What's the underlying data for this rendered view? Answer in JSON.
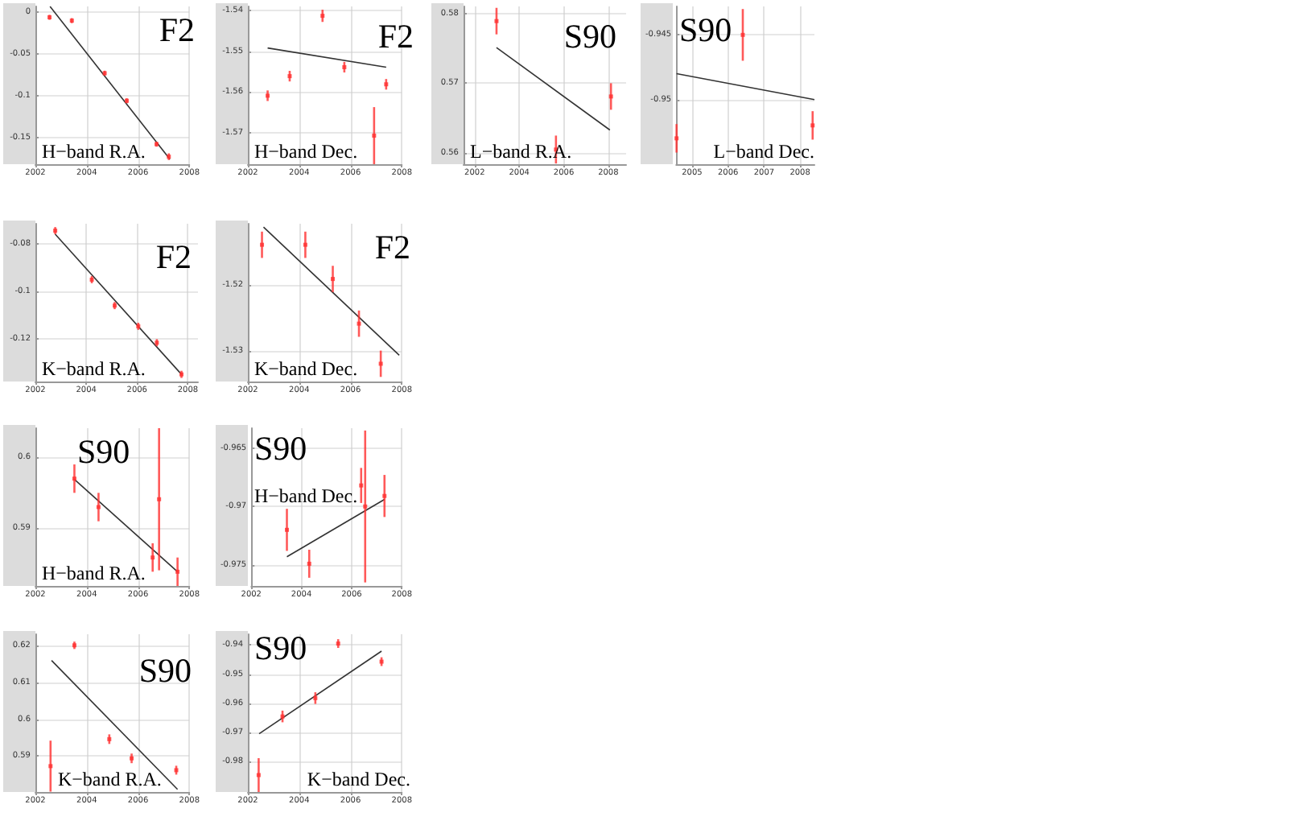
{
  "chart_data": [
    {
      "type": "scatter",
      "title": "F2",
      "subtitle": "H−band R.A.",
      "marker": "square",
      "grid": true,
      "xlim": [
        2002,
        2008
      ],
      "xticks": [
        2002,
        2004,
        2006,
        2008
      ],
      "ylim": [
        -0.182,
        0.007
      ],
      "yticks": [
        0,
        -0.05,
        -0.1,
        -0.15
      ],
      "series": [
        {
          "type": "scatter",
          "color": "#ff3030",
          "x": [
            2002.55,
            2003.42,
            2004.7,
            2005.56,
            2006.72,
            2007.2
          ],
          "values": [
            -0.006,
            -0.01,
            -0.073,
            -0.106,
            -0.158,
            -0.173
          ],
          "errors": [
            0.003,
            0.003,
            0.003,
            0.003,
            0.003,
            0.004
          ]
        },
        {
          "type": "line",
          "marker": "none",
          "color": "#333333",
          "x": [
            2002.57,
            2007.24
          ],
          "values": [
            0.007,
            -0.176
          ]
        }
      ]
    },
    {
      "type": "scatter",
      "title": "F2",
      "subtitle": "H−band Dec.",
      "marker": "square",
      "grid": true,
      "xlim": [
        2002,
        2008
      ],
      "xticks": [
        2002,
        2004,
        2006,
        2008
      ],
      "ylim": [
        -1.5777,
        -1.539
      ],
      "yticks": [
        -1.54,
        -1.55,
        -1.56,
        -1.57
      ],
      "series": [
        {
          "type": "scatter",
          "color": "#ff3030",
          "x": [
            2002.77,
            2003.63,
            2004.91,
            2005.76,
            2006.92,
            2007.39
          ],
          "values": [
            -1.5609,
            -1.5561,
            -1.5413,
            -1.5539,
            -1.5707,
            -1.5581
          ],
          "errors": [
            0.0013,
            0.0013,
            0.0015,
            0.0013,
            0.007,
            0.0013
          ]
        },
        {
          "type": "line",
          "marker": "none",
          "color": "#333333",
          "x": [
            2002.77,
            2007.39
          ],
          "values": [
            -1.5492,
            -1.5539
          ]
        }
      ]
    },
    {
      "type": "scatter",
      "title": "S90",
      "subtitle": "L−band R.A.",
      "marker": "square",
      "grid": true,
      "xlim": [
        2001.5,
        2008.8
      ],
      "xticks": [
        2002,
        2004,
        2006,
        2008
      ],
      "ylim": [
        0.5584,
        0.581
      ],
      "yticks": [
        0.58,
        0.57,
        0.56
      ],
      "series": [
        {
          "type": "scatter",
          "color": "#ff3030",
          "x": [
            2002.98,
            2005.65,
            2008.12
          ],
          "values": [
            0.5789,
            0.5605,
            0.5681
          ],
          "errors": [
            0.0019,
            0.002,
            0.0019
          ]
        },
        {
          "type": "line",
          "marker": "none",
          "color": "#333333",
          "x": [
            2002.98,
            2008.07
          ],
          "values": [
            0.5751,
            0.5633
          ]
        }
      ]
    },
    {
      "type": "scatter",
      "title": "S90",
      "subtitle": "L−band Dec.",
      "marker": "square",
      "grid": true,
      "xlim": [
        2004.56,
        2008.4
      ],
      "xticks": [
        2005,
        2006,
        2007,
        2008
      ],
      "ylim": [
        -0.955,
        -0.9428
      ],
      "yticks": [
        -0.945,
        -0.95
      ],
      "series": [
        {
          "type": "scatter",
          "color": "#ff3030",
          "x": [
            2004.57,
            2006.41,
            2008.35
          ],
          "values": [
            -0.953,
            -0.945,
            -0.952
          ],
          "errors": [
            0.0011,
            0.002,
            0.0011
          ]
        },
        {
          "type": "line",
          "marker": "none",
          "color": "#333333",
          "x": [
            2004.57,
            2008.4
          ],
          "values": [
            -0.948,
            -0.95
          ]
        }
      ]
    },
    {
      "type": "scatter",
      "title": "F2",
      "subtitle": "K−band R.A.",
      "marker": "square",
      "grid": true,
      "xlim": [
        2002,
        2008.4
      ],
      "xticks": [
        2002,
        2004,
        2006,
        2008
      ],
      "ylim": [
        -0.138,
        -0.0717
      ],
      "yticks": [
        -0.08,
        -0.1,
        -0.12
      ],
      "series": [
        {
          "type": "scatter",
          "color": "#ff3030",
          "x": [
            2002.78,
            2004.22,
            2005.12,
            2006.05,
            2006.78,
            2007.75
          ],
          "values": [
            -0.0746,
            -0.0952,
            -0.1061,
            -0.1148,
            -0.1217,
            -0.135
          ],
          "errors": [
            0.0015,
            0.0015,
            0.0015,
            0.0015,
            0.0015,
            0.0015
          ]
        },
        {
          "type": "line",
          "marker": "none",
          "color": "#333333",
          "x": [
            2002.78,
            2007.75
          ],
          "values": [
            -0.0761,
            -0.135
          ]
        }
      ]
    },
    {
      "type": "scatter",
      "title": "F2",
      "subtitle": "K−band Dec.",
      "marker": "square",
      "grid": true,
      "xlim": [
        2002,
        2008
      ],
      "xticks": [
        2002,
        2004,
        2006,
        2008
      ],
      "ylim": [
        -1.5347,
        -1.5107
      ],
      "yticks": [
        -1.52,
        -1.53
      ],
      "series": [
        {
          "type": "scatter",
          "color": "#ff3030",
          "x": [
            2002.55,
            2004.24,
            2005.31,
            2006.33,
            2007.18
          ],
          "values": [
            -1.5139,
            -1.5139,
            -1.5191,
            -1.5259,
            -1.532
          ],
          "errors": [
            0.002,
            0.002,
            0.002,
            0.002,
            0.002
          ]
        },
        {
          "type": "line",
          "marker": "none",
          "color": "#333333",
          "x": [
            2002.61,
            2007.9
          ],
          "values": [
            -1.5112,
            -1.5307
          ]
        }
      ]
    },
    {
      "type": "scatter",
      "title": "S90",
      "subtitle": "H−band R.A.",
      "marker": "square",
      "grid": true,
      "xlim": [
        2002,
        2008
      ],
      "xticks": [
        2002,
        2004,
        2006,
        2008
      ],
      "ylim": [
        0.5819,
        0.6041
      ],
      "yticks": [
        0.6,
        0.59
      ],
      "series": [
        {
          "type": "scatter",
          "color": "#ff3030",
          "x": [
            2003.52,
            2004.46,
            2006.57,
            2006.82,
            2007.54
          ],
          "values": [
            0.597,
            0.593,
            0.5859,
            0.5941,
            0.5839
          ],
          "errors": [
            0.002,
            0.002,
            0.002,
            0.01,
            0.002
          ]
        },
        {
          "type": "line",
          "marker": "none",
          "color": "#333333",
          "x": [
            2003.52,
            2007.54
          ],
          "values": [
            0.5969,
            0.5839
          ]
        }
      ]
    },
    {
      "type": "scatter",
      "title": "S90",
      "subtitle": "H−band Dec.",
      "marker": "square",
      "grid": true,
      "xlim": [
        2002,
        2008
      ],
      "xticks": [
        2002,
        2004,
        2006,
        2008
      ],
      "ylim": [
        -0.9768,
        -0.9633
      ],
      "yticks": [
        -0.965,
        -0.97,
        -0.975
      ],
      "series": [
        {
          "type": "scatter",
          "color": "#ff3030",
          "x": [
            2003.42,
            2004.31,
            2006.38,
            2006.54,
            2007.31
          ],
          "values": [
            -0.972,
            -0.9749,
            -0.9682,
            -0.97,
            -0.9691
          ],
          "errors": [
            0.0018,
            0.0012,
            0.0015,
            0.0065,
            0.0018
          ]
        },
        {
          "type": "line",
          "marker": "none",
          "color": "#333333",
          "x": [
            2003.42,
            2007.31
          ],
          "values": [
            -0.9743,
            -0.9694
          ]
        }
      ]
    },
    {
      "type": "scatter",
      "title": "S90",
      "subtitle": "K−band R.A.",
      "marker": "square",
      "grid": true,
      "xlim": [
        2002,
        2008
      ],
      "xticks": [
        2002,
        2004,
        2006,
        2008
      ],
      "ylim": [
        0.5803,
        0.623
      ],
      "yticks": [
        0.62,
        0.61,
        0.6,
        0.59
      ],
      "series": [
        {
          "type": "scatter",
          "color": "#ff3030",
          "x": [
            2002.59,
            2003.52,
            2004.88,
            2005.75,
            2007.49
          ],
          "values": [
            0.5873,
            0.62,
            0.5946,
            0.5894,
            0.5862
          ],
          "errors": [
            0.0069,
            0.001,
            0.0013,
            0.0013,
            0.0012
          ]
        },
        {
          "type": "line",
          "marker": "none",
          "color": "#333333",
          "x": [
            2002.63,
            2007.54
          ],
          "values": [
            0.6159,
            0.581
          ]
        }
      ]
    },
    {
      "type": "scatter",
      "title": "S90",
      "subtitle": "K−band Dec.",
      "marker": "square",
      "grid": true,
      "xlim": [
        2002,
        2008
      ],
      "xticks": [
        2002,
        2004,
        2006,
        2008
      ],
      "ylim": [
        -0.9904,
        -0.9363
      ],
      "yticks": [
        -0.94,
        -0.95,
        -0.96,
        -0.97,
        -0.98
      ],
      "series": [
        {
          "type": "scatter",
          "color": "#ff3030",
          "x": [
            2002.42,
            2003.35,
            2004.63,
            2005.52,
            2007.21
          ],
          "values": [
            -0.9846,
            -0.9645,
            -0.9582,
            -0.9395,
            -0.9457
          ],
          "errors": [
            0.0058,
            0.002,
            0.002,
            0.0015,
            0.0015
          ]
        },
        {
          "type": "line",
          "marker": "none",
          "color": "#333333",
          "x": [
            2002.44,
            2007.21
          ],
          "values": [
            -0.9704,
            -0.9421
          ]
        }
      ]
    }
  ]
}
